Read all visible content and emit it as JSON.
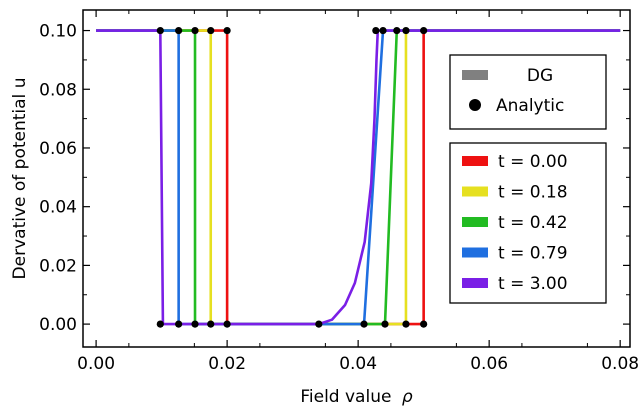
{
  "chart_data": {
    "type": "line",
    "xlabel": "Field value",
    "xlabel_symbol": "ρ",
    "ylabel": "Dervative of potential u",
    "xlim": [
      -0.002,
      0.0815
    ],
    "ylim": [
      -0.0078,
      0.107
    ],
    "xticks": [
      0.0,
      0.02,
      0.04,
      0.06,
      0.08
    ],
    "xtick_labels": [
      "0.00",
      "0.02",
      "0.04",
      "0.06",
      "0.08"
    ],
    "yticks": [
      0.0,
      0.02,
      0.04,
      0.06,
      0.08,
      0.1
    ],
    "ytick_labels": [
      "0.00",
      "0.02",
      "0.04",
      "0.06",
      "0.08",
      "0.10"
    ],
    "grid": false,
    "legend_method": {
      "placement": "right",
      "entries": [
        {
          "label": "DG",
          "marker": "line",
          "color": "#808080"
        },
        {
          "label": "Analytic",
          "marker": "circle",
          "color": "#000000"
        }
      ]
    },
    "legend_time": {
      "placement": "right",
      "entries": [
        {
          "label": "t = 0.00",
          "color": "#ee1111"
        },
        {
          "label": "t = 0.18",
          "color": "#e6e020"
        },
        {
          "label": "t = 0.42",
          "color": "#22bb22"
        },
        {
          "label": "t = 0.79",
          "color": "#1f6fe0"
        },
        {
          "label": "t = 3.00",
          "color": "#7a1fe6"
        }
      ]
    },
    "series": [
      {
        "t": 0.0,
        "color": "#ee1111",
        "points": [
          [
            0.0,
            0.1
          ],
          [
            0.02,
            0.1
          ],
          [
            0.02,
            0.0
          ],
          [
            0.05,
            0.0
          ],
          [
            0.05,
            0.1
          ],
          [
            0.08,
            0.1
          ]
        ],
        "analytic": [
          [
            0.02,
            0.1
          ],
          [
            0.02,
            0.0
          ],
          [
            0.05,
            0.0
          ],
          [
            0.05,
            0.1
          ]
        ]
      },
      {
        "t": 0.18,
        "color": "#e6e020",
        "points": [
          [
            0.0,
            0.1
          ],
          [
            0.0175,
            0.1
          ],
          [
            0.0175,
            0.0
          ],
          [
            0.0473,
            0.0
          ],
          [
            0.0473,
            0.1
          ],
          [
            0.08,
            0.1
          ]
        ],
        "analytic": [
          [
            0.0175,
            0.1
          ],
          [
            0.0175,
            0.0
          ],
          [
            0.0473,
            0.0
          ],
          [
            0.0473,
            0.1
          ]
        ]
      },
      {
        "t": 0.42,
        "color": "#22bb22",
        "points": [
          [
            0.0,
            0.1
          ],
          [
            0.0151,
            0.1
          ],
          [
            0.0151,
            0.0
          ],
          [
            0.0441,
            0.0
          ],
          [
            0.0459,
            0.1
          ],
          [
            0.08,
            0.1
          ]
        ],
        "analytic": [
          [
            0.0151,
            0.1
          ],
          [
            0.0151,
            0.0
          ],
          [
            0.0441,
            0.0
          ],
          [
            0.0459,
            0.1
          ]
        ]
      },
      {
        "t": 0.79,
        "color": "#1f6fe0",
        "points": [
          [
            0.0,
            0.1
          ],
          [
            0.0126,
            0.1
          ],
          [
            0.0126,
            0.0
          ],
          [
            0.0409,
            0.0
          ],
          [
            0.0438,
            0.1
          ],
          [
            0.08,
            0.1
          ]
        ],
        "analytic": [
          [
            0.0126,
            0.1
          ],
          [
            0.0126,
            0.0
          ],
          [
            0.0409,
            0.0
          ],
          [
            0.0438,
            0.1
          ]
        ]
      },
      {
        "t": 3.0,
        "color": "#7a1fe6",
        "points": [
          [
            0.0,
            0.1
          ],
          [
            0.0098,
            0.1
          ],
          [
            0.0102,
            0.0
          ],
          [
            0.034,
            0.0
          ],
          [
            0.036,
            0.0015
          ],
          [
            0.038,
            0.0065
          ],
          [
            0.0395,
            0.014
          ],
          [
            0.041,
            0.028
          ],
          [
            0.042,
            0.048
          ],
          [
            0.0425,
            0.07
          ],
          [
            0.0428,
            0.09
          ],
          [
            0.043,
            0.1
          ],
          [
            0.08,
            0.1
          ]
        ],
        "analytic": [
          [
            0.0098,
            0.1
          ],
          [
            0.0098,
            0.0
          ],
          [
            0.034,
            0.0
          ],
          [
            0.0427,
            0.1
          ]
        ]
      }
    ]
  }
}
